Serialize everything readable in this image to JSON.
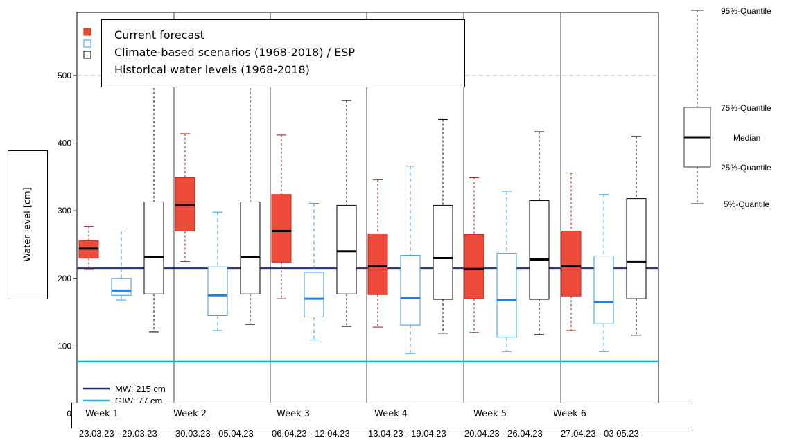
{
  "chart_data": {
    "type": "box",
    "ylabel": "Water level [cm]",
    "ylim": [
      0,
      550
    ],
    "yticks": [
      "0",
      "100",
      "200",
      "300",
      "400",
      "500"
    ],
    "grid": "dashed line at 500",
    "legend_placement": "top-left",
    "legend": [
      {
        "label": "Current forecast",
        "color": "#ef4b3a"
      },
      {
        "label": "Climate-based scenarios (1968-2018) / ESP",
        "color": "#3399ee"
      },
      {
        "label": "Historical water levels (1968-2018)",
        "color": "#000000"
      }
    ],
    "reference_lines": [
      {
        "label": "MW: 215 cm",
        "value": 215,
        "color": "#1f2d7a"
      },
      {
        "label": "GIW: 77 cm",
        "value": 77,
        "color": "#12b4e6"
      }
    ],
    "weeks": [
      {
        "label": "Week 1",
        "dates": "23.03.23 - 29.03.23",
        "forecast": {
          "q5": 213,
          "q25": 230,
          "median": 244,
          "q75": 256,
          "q95": 277
        },
        "esp": {
          "q5": 168,
          "q25": 175,
          "median": 182,
          "q75": 200,
          "q95": 270
        },
        "historical": {
          "q5": 121,
          "q25": 177,
          "median": 232,
          "q75": 313,
          "q95": 500
        }
      },
      {
        "label": "Week 2",
        "dates": "30.03.23 - 05.04.23",
        "forecast": {
          "q5": 225,
          "q25": 270,
          "median": 308,
          "q75": 349,
          "q95": 414
        },
        "esp": {
          "q5": 123,
          "q25": 145,
          "median": 175,
          "q75": 217,
          "q95": 298
        },
        "historical": {
          "q5": 132,
          "q25": 177,
          "median": 232,
          "q75": 313,
          "q95": 500
        }
      },
      {
        "label": "Week 3",
        "dates": "06.04.23 - 12.04.23",
        "forecast": {
          "q5": 170,
          "q25": 224,
          "median": 270,
          "q75": 324,
          "q95": 412
        },
        "esp": {
          "q5": 109,
          "q25": 143,
          "median": 170,
          "q75": 209,
          "q95": 311
        },
        "historical": {
          "q5": 129,
          "q25": 177,
          "median": 240,
          "q75": 308,
          "q95": 463
        }
      },
      {
        "label": "Week 4",
        "dates": "13.04.23 - 19.04.23",
        "forecast": {
          "q5": 128,
          "q25": 176,
          "median": 218,
          "q75": 266,
          "q95": 346
        },
        "esp": {
          "q5": 89,
          "q25": 131,
          "median": 171,
          "q75": 234,
          "q95": 366
        },
        "historical": {
          "q5": 119,
          "q25": 169,
          "median": 230,
          "q75": 308,
          "q95": 435
        }
      },
      {
        "label": "Week 5",
        "dates": "20.04.23 - 26.04.23",
        "forecast": {
          "q5": 120,
          "q25": 170,
          "median": 214,
          "q75": 265,
          "q95": 349
        },
        "esp": {
          "q5": 92,
          "q25": 113,
          "median": 168,
          "q75": 237,
          "q95": 329
        },
        "historical": {
          "q5": 117,
          "q25": 169,
          "median": 228,
          "q75": 315,
          "q95": 417
        }
      },
      {
        "label": "Week 6",
        "dates": "27.04.23 - 03.05.23",
        "forecast": {
          "q5": 123,
          "q25": 174,
          "median": 218,
          "q75": 270,
          "q95": 356
        },
        "esp": {
          "q5": 92,
          "q25": 133,
          "median": 165,
          "q75": 233,
          "q95": 324
        },
        "historical": {
          "q5": 116,
          "q25": 170,
          "median": 225,
          "q75": 318,
          "q95": 410
        }
      }
    ],
    "key": {
      "labels": [
        "95%-Quantile",
        "75%-Quantile",
        "Median",
        "25%-Quantile",
        "5%-Quantile"
      ]
    }
  }
}
